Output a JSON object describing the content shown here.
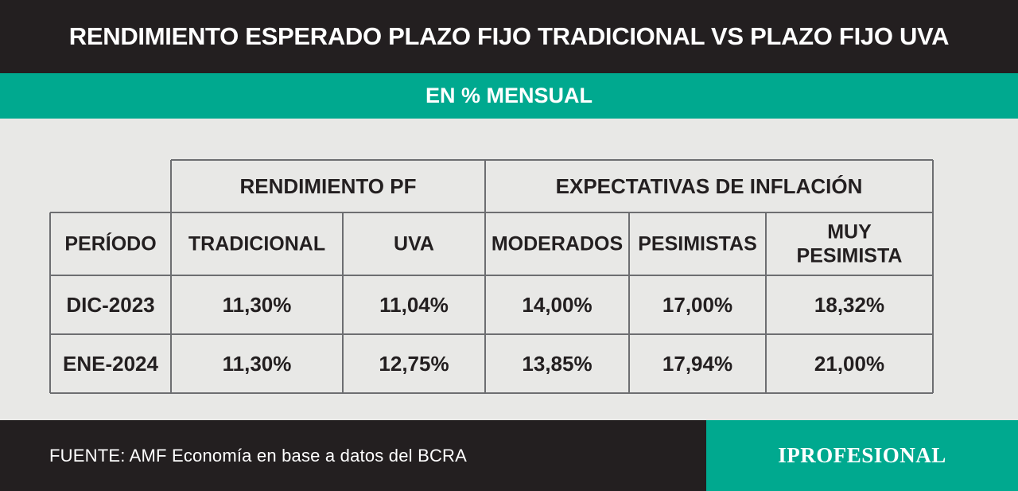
{
  "header": {
    "title": "RENDIMIENTO ESPERADO PLAZO FIJO TRADICIONAL VS PLAZO FIJO UVA",
    "subtitle": "EN % MENSUAL"
  },
  "colors": {
    "dark": "#231f20",
    "accent": "#00a98f",
    "background": "#e8e8e6",
    "grid": "#6d6e71",
    "text": "#231f20"
  },
  "chart_data": {
    "type": "table",
    "group_headers": [
      "RENDIMIENTO PF",
      "EXPECTATIVAS DE INFLACIÓN"
    ],
    "columns": [
      "PERÍODO",
      "TRADICIONAL",
      "UVA",
      "MODERADOS",
      "PESIMISTAS",
      "MUY PESIMISTA"
    ],
    "rows": [
      {
        "period": "DIC-2023",
        "values": [
          "11,30%",
          "11,04%",
          "14,00%",
          "17,00%",
          "18,32%"
        ]
      },
      {
        "period": "ENE-2024",
        "values": [
          "11,30%",
          "12,75%",
          "13,85%",
          "17,94%",
          "21,00%"
        ]
      }
    ]
  },
  "footer": {
    "source": "FUENTE:  AMF Economía en base a datos del BCRA",
    "brand": "IPROFESIONAL"
  }
}
